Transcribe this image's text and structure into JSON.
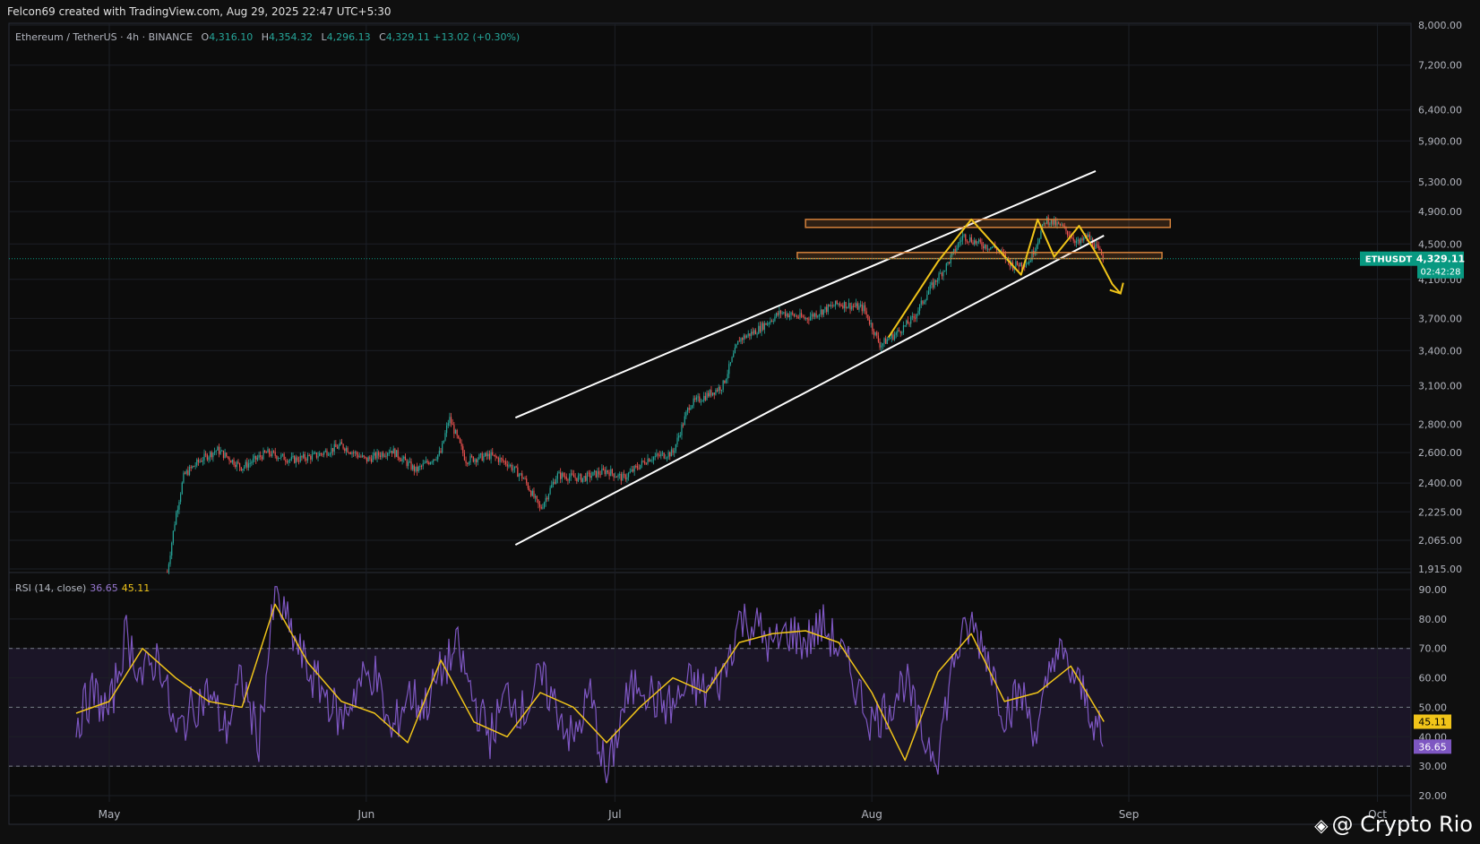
{
  "header": {
    "credit": "Felcon69 created with TradingView.com, Aug 29, 2025 22:47 UTC+5:30"
  },
  "legend": {
    "symbol": "Ethereum / TetherUS · 4h · BINANCE",
    "o_label": "O",
    "o": "4,316.10",
    "h_label": "H",
    "h": "4,354.32",
    "l_label": "L",
    "l": "4,296.13",
    "c_label": "C",
    "c": "4,329.11",
    "change": "+13.02 (+0.30%)"
  },
  "rsi_legend": {
    "label": "RSI (14, close)",
    "rsi": "36.65",
    "ma": "45.11"
  },
  "watermark": {
    "text": "@ Crypto Rio"
  },
  "colors": {
    "bg": "#0f0f0f",
    "up": "#26a69a",
    "down": "#ef5350",
    "channel": "#ffffff",
    "zone": "#d4813b",
    "pattern": "#f0c419",
    "rsi": "#7e57c2",
    "rsi_ma": "#f0c419",
    "price_tag": "#089981"
  },
  "chart_data": [
    {
      "type": "line",
      "title": "Ethereum / TetherUS · 4h · BINANCE",
      "scale": "log",
      "x_ticks": [
        "May",
        "Jun",
        "Jul",
        "Aug",
        "Sep",
        "Oct"
      ],
      "x_tick_dates": [
        "2025-05-01",
        "2025-06-01",
        "2025-07-01",
        "2025-08-01",
        "2025-09-01",
        "2025-10-01"
      ],
      "y_ticks": [
        "8,000.00",
        "7,200.00",
        "6,400.00",
        "5,900.00",
        "5,300.00",
        "4,900.00",
        "4,500.00",
        "4,100.00",
        "3,700.00",
        "3,400.00",
        "3,100.00",
        "2,800.00",
        "2,600.00",
        "2,400.00",
        "2,225.00",
        "2,065.00",
        "1,915.00"
      ],
      "ylim": [
        1900,
        8200
      ],
      "last_price": {
        "label": "ETHUSDT",
        "value": "4,329.11",
        "countdown": "02:42:28"
      },
      "series": [
        {
          "name": "ETHUSDT",
          "x": [
            "2025-05-08",
            "2025-05-09",
            "2025-05-10",
            "2025-05-12",
            "2025-05-14",
            "2025-05-17",
            "2025-05-20",
            "2025-05-23",
            "2025-05-26",
            "2025-05-29",
            "2025-06-01",
            "2025-06-04",
            "2025-06-07",
            "2025-06-10",
            "2025-06-11",
            "2025-06-13",
            "2025-06-16",
            "2025-06-18",
            "2025-06-20",
            "2025-06-22",
            "2025-06-24",
            "2025-06-27",
            "2025-06-30",
            "2025-07-02",
            "2025-07-05",
            "2025-07-08",
            "2025-07-10",
            "2025-07-12",
            "2025-07-14",
            "2025-07-16",
            "2025-07-18",
            "2025-07-21",
            "2025-07-24",
            "2025-07-28",
            "2025-07-31",
            "2025-08-02",
            "2025-08-04",
            "2025-08-06",
            "2025-08-08",
            "2025-08-10",
            "2025-08-12",
            "2025-08-14",
            "2025-08-16",
            "2025-08-18",
            "2025-08-20",
            "2025-08-22",
            "2025-08-24",
            "2025-08-26",
            "2025-08-27",
            "2025-08-29"
          ],
          "values": [
            1900,
            2200,
            2450,
            2550,
            2620,
            2500,
            2600,
            2550,
            2580,
            2650,
            2550,
            2620,
            2480,
            2600,
            2850,
            2550,
            2580,
            2530,
            2430,
            2240,
            2450,
            2430,
            2480,
            2430,
            2560,
            2600,
            2950,
            3020,
            3100,
            3500,
            3580,
            3760,
            3700,
            3850,
            3800,
            3450,
            3560,
            3700,
            4000,
            4250,
            4600,
            4500,
            4450,
            4250,
            4300,
            4800,
            4700,
            4500,
            4600,
            4330
          ]
        }
      ],
      "annotations": {
        "channel_upper": {
          "from": [
            "2025-06-19",
            2850
          ],
          "to": [
            "2025-08-28",
            5450
          ]
        },
        "channel_lower": {
          "from": [
            "2025-06-19",
            2040
          ],
          "to": [
            "2025-08-29",
            4600
          ]
        },
        "zones": [
          {
            "x_from": "2025-07-24",
            "x_to": "2025-09-06",
            "y_from": 4700,
            "y_to": 4800
          },
          {
            "x_from": "2025-07-23",
            "x_to": "2025-09-05",
            "y_from": 4330,
            "y_to": 4400
          }
        ],
        "pattern_path": {
          "x": [
            "2025-08-03",
            "2025-08-09",
            "2025-08-13",
            "2025-08-19",
            "2025-08-21",
            "2025-08-23",
            "2025-08-26",
            "2025-08-28",
            "2025-08-30",
            "2025-08-31"
          ],
          "y": [
            3520,
            4300,
            4800,
            4150,
            4800,
            4350,
            4720,
            4400,
            4050,
            3950
          ]
        }
      }
    },
    {
      "type": "line",
      "title": "RSI (14, close)",
      "y_ticks": [
        "90.00",
        "80.00",
        "70.00",
        "60.00",
        "50.00",
        "40.00",
        "30.00",
        "20.00"
      ],
      "ylim": [
        18,
        93
      ],
      "bands": [
        30,
        50,
        70
      ],
      "current": {
        "rsi": "36.65",
        "ma": "45.11"
      },
      "series": [
        {
          "name": "RSI",
          "x": [
            "2025-04-27",
            "2025-04-29",
            "2025-05-01",
            "2025-05-03",
            "2025-05-05",
            "2025-05-07",
            "2025-05-09",
            "2025-05-11",
            "2025-05-13",
            "2025-05-15",
            "2025-05-17",
            "2025-05-19",
            "2025-05-21",
            "2025-05-23",
            "2025-05-25",
            "2025-05-27",
            "2025-05-29",
            "2025-05-31",
            "2025-06-02",
            "2025-06-04",
            "2025-06-06",
            "2025-06-08",
            "2025-06-10",
            "2025-06-12",
            "2025-06-14",
            "2025-06-16",
            "2025-06-18",
            "2025-06-20",
            "2025-06-22",
            "2025-06-24",
            "2025-06-26",
            "2025-06-28",
            "2025-06-30",
            "2025-07-02",
            "2025-07-04",
            "2025-07-06",
            "2025-07-08",
            "2025-07-10",
            "2025-07-12",
            "2025-07-14",
            "2025-07-16",
            "2025-07-18",
            "2025-07-20",
            "2025-07-22",
            "2025-07-24",
            "2025-07-26",
            "2025-07-28",
            "2025-07-30",
            "2025-08-01",
            "2025-08-03",
            "2025-08-05",
            "2025-08-07",
            "2025-08-09",
            "2025-08-11",
            "2025-08-13",
            "2025-08-15",
            "2025-08-17",
            "2025-08-19",
            "2025-08-21",
            "2025-08-23",
            "2025-08-25",
            "2025-08-27",
            "2025-08-29"
          ],
          "values": [
            45,
            55,
            48,
            75,
            60,
            68,
            40,
            50,
            55,
            42,
            60,
            38,
            88,
            75,
            62,
            55,
            45,
            58,
            62,
            40,
            55,
            50,
            62,
            70,
            52,
            40,
            55,
            48,
            60,
            50,
            38,
            55,
            25,
            50,
            60,
            52,
            50,
            58,
            55,
            60,
            80,
            78,
            70,
            76,
            72,
            78,
            70,
            58,
            45,
            50,
            60,
            40,
            35,
            68,
            78,
            68,
            48,
            55,
            40,
            70,
            62,
            52,
            36.65
          ]
        },
        {
          "name": "RSI-based MA",
          "x": [
            "2025-04-27",
            "2025-05-01",
            "2025-05-05",
            "2025-05-09",
            "2025-05-13",
            "2025-05-17",
            "2025-05-21",
            "2025-05-25",
            "2025-05-29",
            "2025-06-02",
            "2025-06-06",
            "2025-06-10",
            "2025-06-14",
            "2025-06-18",
            "2025-06-22",
            "2025-06-26",
            "2025-06-30",
            "2025-07-04",
            "2025-07-08",
            "2025-07-12",
            "2025-07-16",
            "2025-07-20",
            "2025-07-24",
            "2025-07-28",
            "2025-08-01",
            "2025-08-05",
            "2025-08-09",
            "2025-08-13",
            "2025-08-17",
            "2025-08-21",
            "2025-08-25",
            "2025-08-29"
          ],
          "values": [
            48,
            52,
            70,
            60,
            52,
            50,
            85,
            65,
            52,
            48,
            38,
            66,
            45,
            40,
            55,
            50,
            38,
            50,
            60,
            55,
            72,
            75,
            76,
            72,
            55,
            32,
            62,
            75,
            52,
            55,
            64,
            45.11
          ]
        }
      ]
    }
  ]
}
